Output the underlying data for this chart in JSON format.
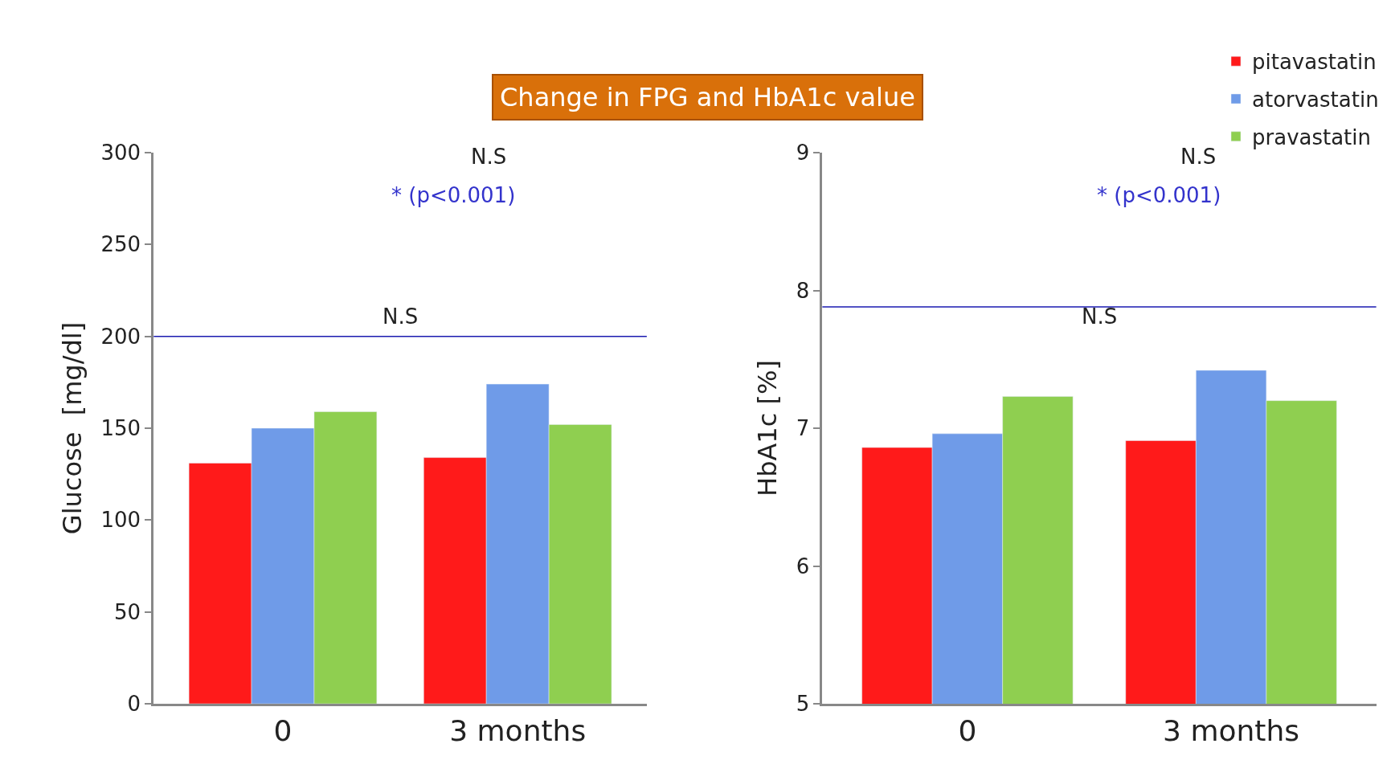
{
  "chart_data": [
    {
      "type": "bar",
      "title": "Change in FPG and HbA1c value",
      "ylabel": "Glucose  [mg/dl]",
      "categories": [
        "0",
        "3 months"
      ],
      "series": [
        {
          "name": "pitavastatin",
          "color": "#ff1a1a",
          "values": [
            131,
            134
          ]
        },
        {
          "name": "atorvastatin",
          "color": "#6f9be8",
          "values": [
            150,
            174
          ]
        },
        {
          "name": "pravastatin",
          "color": "#8fcf50",
          "values": [
            159,
            152
          ]
        }
      ],
      "ylim": [
        0,
        300
      ],
      "yticks": [
        0,
        50,
        100,
        150,
        200,
        250,
        300
      ],
      "legend": "top right",
      "ref_lines": [
        {
          "axis": "y",
          "value": 200,
          "color": "#1a1ab0"
        }
      ],
      "annotations": [
        "N.S",
        "* (p<0.001)",
        "N.S"
      ]
    },
    {
      "type": "bar",
      "ylabel": "HbA1c [%]",
      "categories": [
        "0",
        "3 months"
      ],
      "series": [
        {
          "color": "#ff1a1a",
          "values": [
            6.86,
            6.91
          ]
        },
        {
          "color": "#6f9be8",
          "values": [
            6.96,
            7.42
          ]
        },
        {
          "color": "#8fcf50",
          "values": [
            7.23,
            7.2
          ]
        }
      ],
      "ylim": [
        5,
        9
      ],
      "yticks": [
        5,
        6,
        7,
        8,
        9
      ],
      "ref_lines": [
        {
          "axis": "y",
          "value": 7.88,
          "color": "#1a1ab0"
        }
      ],
      "annotations": [
        "N.S",
        "* (p<0.001)",
        "N.S"
      ]
    }
  ]
}
